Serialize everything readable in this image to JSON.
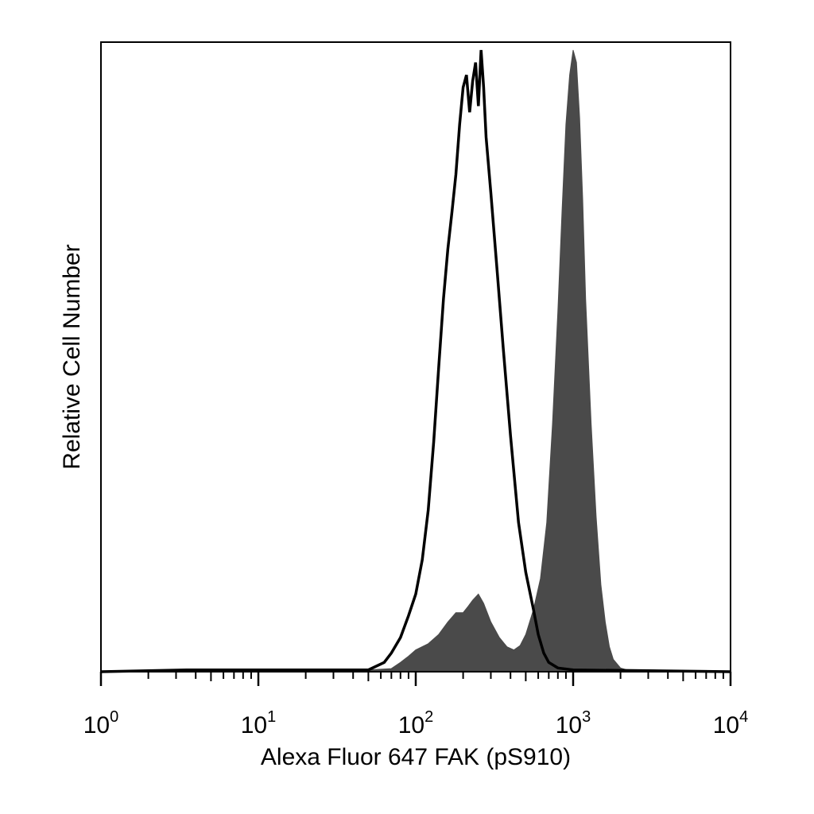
{
  "chart_data": {
    "type": "area",
    "xlabel": "Alexa Fluor 647 FAK (pS910)",
    "ylabel": "Relative Cell Number",
    "xscale": "log",
    "xlim": [
      1,
      10000
    ],
    "ylim": [
      0,
      100
    ],
    "grid": false,
    "legend": "none",
    "x_ticks": [
      {
        "base": "10",
        "exp": "0"
      },
      {
        "base": "10",
        "exp": "1"
      },
      {
        "base": "10",
        "exp": "2"
      },
      {
        "base": "10",
        "exp": "3"
      },
      {
        "base": "10",
        "exp": "4"
      }
    ],
    "series": [
      {
        "style": "filled",
        "color": "#4a4a4a",
        "x": [
          1,
          3.5,
          10,
          50,
          70,
          80,
          90,
          100,
          120,
          140,
          160,
          180,
          200,
          215,
          230,
          250,
          270,
          300,
          340,
          380,
          420,
          460,
          500,
          560,
          620,
          680,
          740,
          800,
          850,
          900,
          950,
          1000,
          1050,
          1100,
          1150,
          1200,
          1300,
          1400,
          1500,
          1600,
          1700,
          1800,
          2000,
          2200,
          3000,
          10000
        ],
        "y": [
          0,
          0.3,
          0.3,
          0.3,
          0.5,
          1.5,
          2.5,
          3.5,
          4.5,
          6,
          8,
          9.5,
          9.5,
          10.5,
          11.5,
          12.5,
          11,
          8,
          5.5,
          4,
          3.5,
          4.2,
          6,
          10,
          15,
          24,
          40,
          58,
          74,
          88,
          96,
          100,
          98,
          89,
          76,
          60,
          40,
          25,
          14,
          8,
          4,
          2,
          0.6,
          0.3,
          0.3,
          0
        ]
      },
      {
        "style": "outline",
        "color": "#000000",
        "x": [
          1,
          3.5,
          10,
          50,
          63,
          70,
          80,
          90,
          100,
          110,
          120,
          130,
          140,
          150,
          160,
          170,
          180,
          190,
          200,
          210,
          220,
          230,
          240,
          250,
          260,
          270,
          280,
          300,
          330,
          360,
          400,
          450,
          500,
          560,
          600,
          650,
          700,
          800,
          1000,
          10000
        ],
        "y": [
          0,
          0.3,
          0.3,
          0.3,
          1.5,
          3,
          5.5,
          9,
          12.5,
          18,
          26,
          37,
          49,
          60,
          68,
          74,
          80,
          88,
          94,
          96,
          90,
          95,
          98,
          91,
          100,
          94,
          86,
          77,
          64,
          52,
          38,
          24,
          16,
          10,
          6,
          3,
          1.5,
          0.6,
          0.3,
          0
        ]
      }
    ]
  }
}
